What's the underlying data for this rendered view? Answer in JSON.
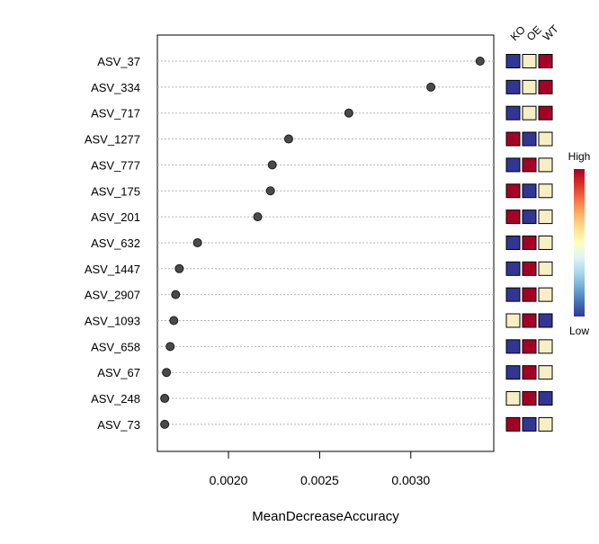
{
  "chart_data": {
    "type": "scatter",
    "variant": "dot-plot-with-heatmap",
    "xlabel": "MeanDecreaseAccuracy",
    "ylabel": "",
    "xlim": [
      0.00161,
      0.003455
    ],
    "x_ticks": [
      0.002,
      0.0025,
      0.003
    ],
    "x_tick_labels": [
      "0.0020",
      "0.0025",
      "0.0030"
    ],
    "grid": "horizontal dotted",
    "point_color": "#4a4a4a",
    "categories": [
      "ASV_37",
      "ASV_334",
      "ASV_717",
      "ASV_1277",
      "ASV_777",
      "ASV_175",
      "ASV_201",
      "ASV_632",
      "ASV_1447",
      "ASV_2907",
      "ASV_1093",
      "ASV_658",
      "ASV_67",
      "ASV_248",
      "ASV_73"
    ],
    "values": [
      0.00338,
      0.00311,
      0.00266,
      0.00233,
      0.00224,
      0.00223,
      0.00216,
      0.00183,
      0.00173,
      0.00171,
      0.0017,
      0.00168,
      0.00166,
      0.00165,
      0.00165
    ],
    "heatmap": {
      "columns": [
        "KO",
        "OE",
        "WT"
      ],
      "levels": {
        "low": "#313695",
        "mid": "#f6efc5",
        "high": "#a50026"
      },
      "rows": [
        [
          "low",
          "mid",
          "high"
        ],
        [
          "low",
          "mid",
          "high"
        ],
        [
          "low",
          "mid",
          "high"
        ],
        [
          "high",
          "low",
          "mid"
        ],
        [
          "low",
          "high",
          "mid"
        ],
        [
          "high",
          "low",
          "mid"
        ],
        [
          "high",
          "low",
          "mid"
        ],
        [
          "low",
          "high",
          "mid"
        ],
        [
          "low",
          "high",
          "mid"
        ],
        [
          "low",
          "high",
          "mid"
        ],
        [
          "mid",
          "high",
          "low"
        ],
        [
          "low",
          "high",
          "mid"
        ],
        [
          "low",
          "high",
          "mid"
        ],
        [
          "mid",
          "high",
          "low"
        ],
        [
          "high",
          "low",
          "mid"
        ]
      ]
    },
    "legend": {
      "high_label": "High",
      "low_label": "Low",
      "gradient": [
        "#313695",
        "#4575b4",
        "#74add1",
        "#abd9e9",
        "#e0f3f8",
        "#ffffbf",
        "#fee090",
        "#fdae61",
        "#f46d43",
        "#d73027",
        "#a50026"
      ],
      "placement": "right"
    }
  }
}
